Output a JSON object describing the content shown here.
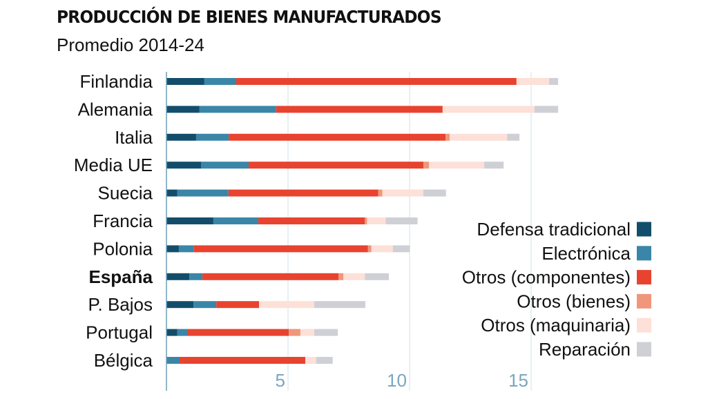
{
  "chart_data": {
    "type": "bar",
    "orientation": "horizontal",
    "stacked": true,
    "title": "PRODUCCIÓN DE BIENES MANUFACTURADOS",
    "subtitle": "Promedio 2014-24",
    "xlabel": "",
    "ylabel": "",
    "xlim": [
      0,
      17
    ],
    "xticks": [
      5,
      10,
      15
    ],
    "grid": true,
    "legend_position": "bottom-right",
    "highlight_category": "España",
    "categories": [
      "Finlandia",
      "Alemania",
      "Italia",
      "Media UE",
      "Suecia",
      "Francia",
      "Polonia",
      "España",
      "P. Bajos",
      "Portugal",
      "Bélgica"
    ],
    "series": [
      {
        "name": "Defensa tradicional",
        "color": "#124e6b",
        "values": [
          1.56,
          1.36,
          1.22,
          1.42,
          0.45,
          1.93,
          0.51,
          0.94,
          1.11,
          0.45,
          0.0
        ]
      },
      {
        "name": "Electrónica",
        "color": "#3a86a8",
        "values": [
          1.31,
          3.15,
          1.34,
          1.96,
          2.1,
          1.85,
          0.62,
          0.54,
          0.94,
          0.43,
          0.54
        ]
      },
      {
        "name": "Otros (componentes)",
        "color": "#e8432f",
        "values": [
          11.53,
          6.85,
          8.92,
          7.19,
          6.16,
          4.38,
          7.16,
          5.6,
          1.76,
          4.15,
          5.17
        ]
      },
      {
        "name": "Otros (bienes)",
        "color": "#f0967b",
        "values": [
          0.0,
          0.0,
          0.17,
          0.23,
          0.17,
          0.09,
          0.14,
          0.2,
          0.0,
          0.48,
          0.0
        ]
      },
      {
        "name": "Otros (maquinaria)",
        "color": "#fde0d7",
        "values": [
          1.34,
          3.78,
          2.36,
          2.27,
          1.68,
          0.77,
          0.88,
          0.88,
          2.27,
          0.57,
          0.45
        ]
      },
      {
        "name": "Reparación",
        "color": "#cfd0d6",
        "values": [
          0.37,
          0.97,
          0.51,
          0.8,
          0.94,
          1.31,
          0.71,
          0.99,
          2.1,
          0.97,
          0.68
        ]
      }
    ]
  }
}
